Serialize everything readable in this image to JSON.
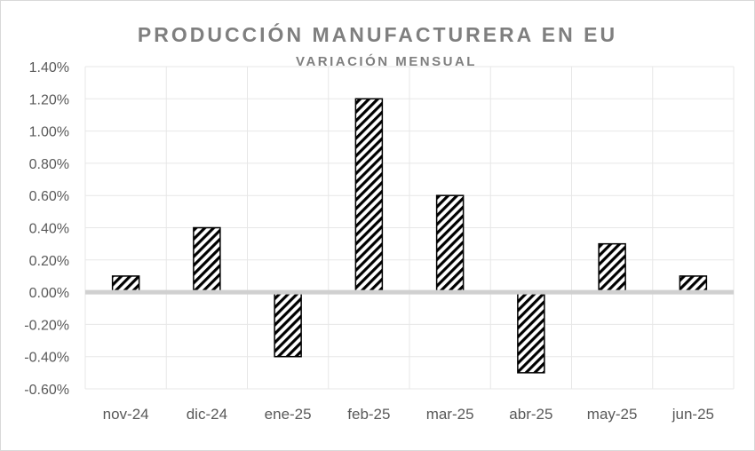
{
  "chart_data": {
    "type": "bar",
    "title": "PRODUCCIÓN MANUFACTURERA EN EU",
    "subtitle": "VARIACIÓN MENSUAL",
    "categories": [
      "nov-24",
      "dic-24",
      "ene-25",
      "feb-25",
      "mar-25",
      "abr-25",
      "may-25",
      "jun-25"
    ],
    "values": [
      0.1,
      0.4,
      -0.4,
      1.2,
      0.6,
      -0.5,
      0.3,
      0.1
    ],
    "unit": "%",
    "ylim": [
      -0.6,
      1.4
    ],
    "yticks": [
      "1.40%",
      "1.20%",
      "1.00%",
      "0.80%",
      "0.60%",
      "0.40%",
      "0.20%",
      "0.00%",
      "-0.20%",
      "-0.40%",
      "-0.60%"
    ],
    "grid": true,
    "legend": "none",
    "bar_fill": "diagonal hatch black on white",
    "colors": {
      "text": "#595959",
      "title": "#7f7f7f",
      "grid": "#e7e7e7",
      "zero_line": "#d0d0d0",
      "bar": "#000000"
    }
  }
}
